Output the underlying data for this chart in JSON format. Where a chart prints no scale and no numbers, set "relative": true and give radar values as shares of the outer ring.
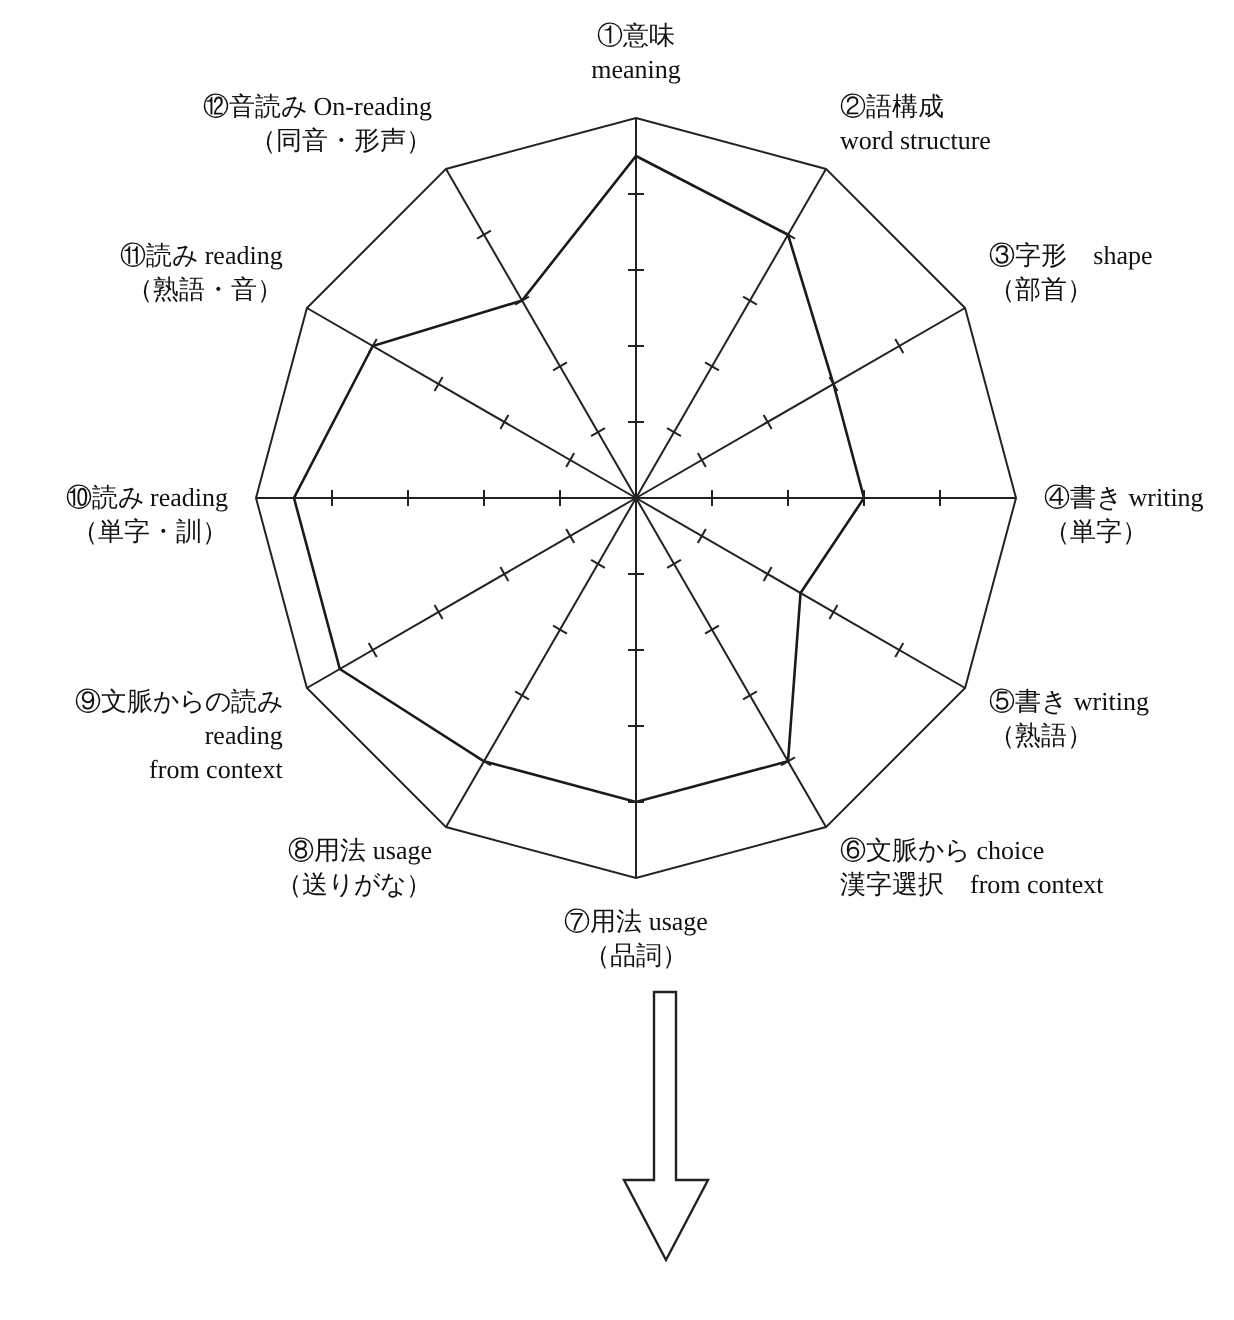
{
  "chart_data": {
    "type": "radar",
    "relative": true,
    "grid": true,
    "marker": "none",
    "categories": [
      "①意味\nmeaning",
      "②語構成\nword structure",
      "③字形　shape\n（部首）",
      "④書き writing\n（単字）",
      "⑤書き writing\n（熟語）",
      "⑥文脈から choice\n漢字選択　from context",
      "⑦用法 usage\n（品詞）",
      "⑧用法 usage\n（送りがな）",
      "⑨文脈からの読み\nreading\nfrom context",
      "⑩読み reading\n（単字・訓）",
      "⑪読み reading\n（熟語・音）",
      "⑫音読み On-reading\n（同音・形声）"
    ],
    "series": [
      {
        "color": "#1a1a1a",
        "values": [
          0.9,
          0.8,
          0.6,
          0.6,
          0.5,
          0.8,
          0.8,
          0.8,
          0.9,
          0.9,
          0.8,
          0.6
        ]
      }
    ]
  }
}
